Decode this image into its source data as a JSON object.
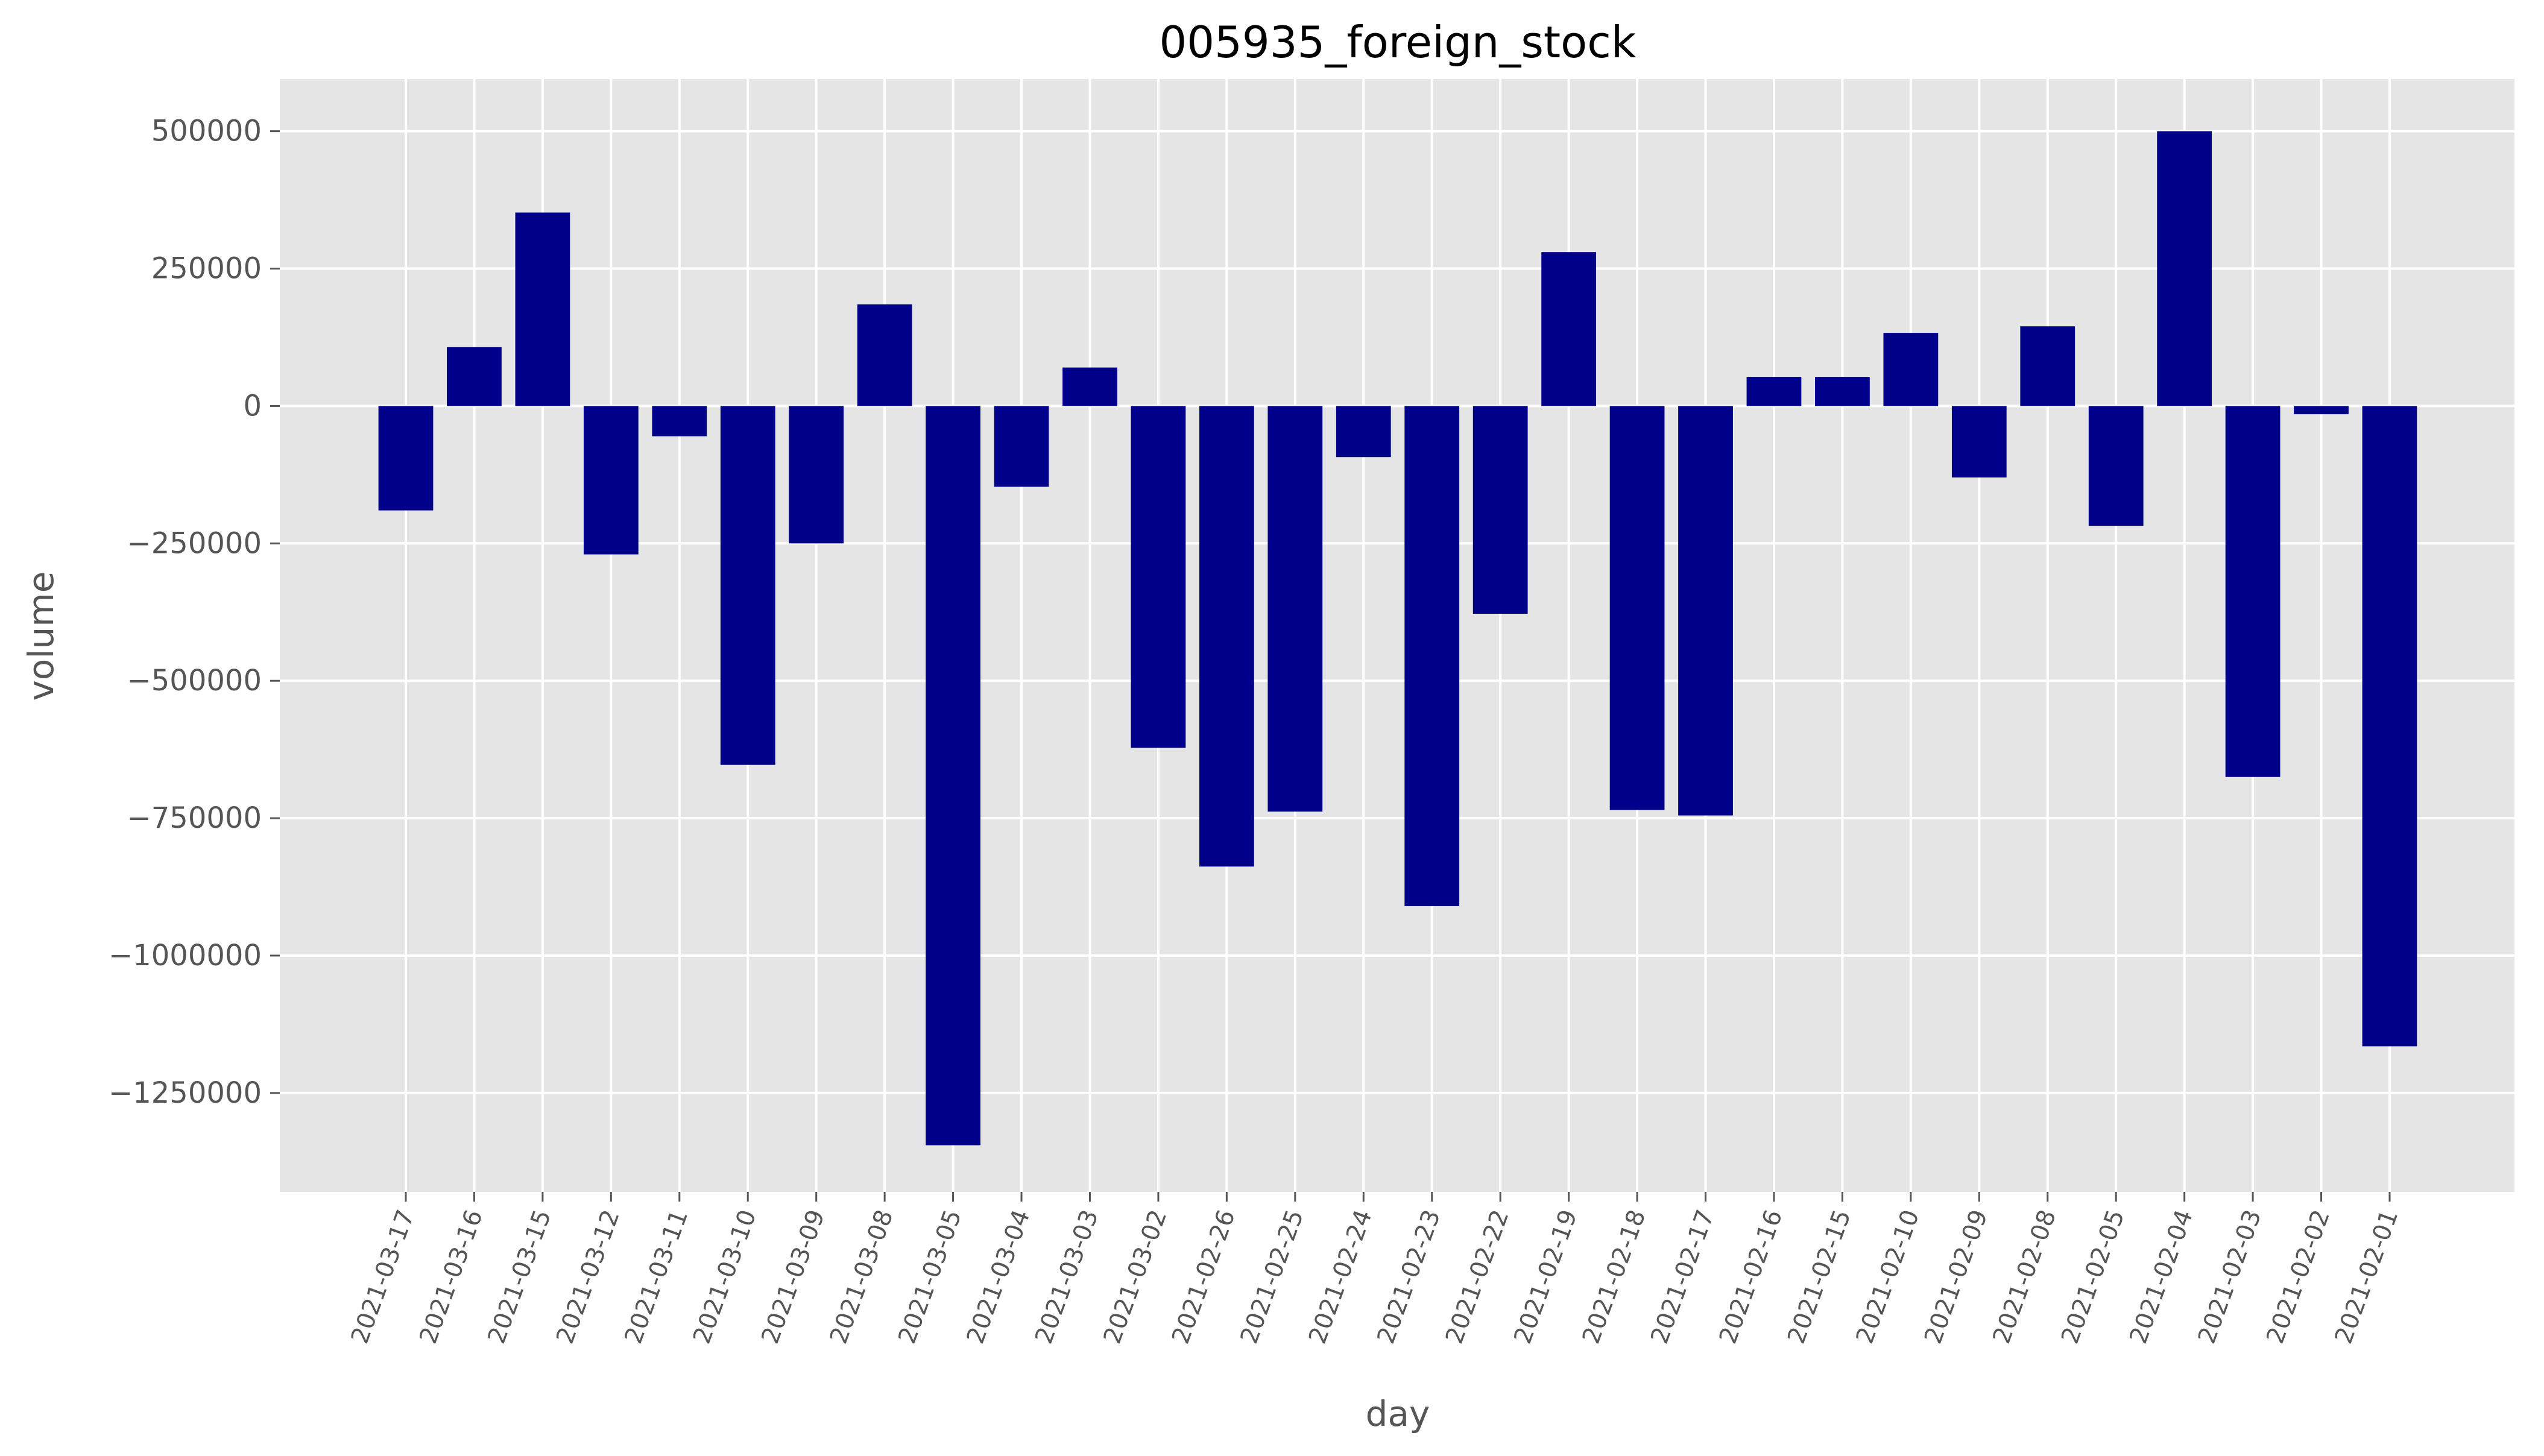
{
  "chart_data": {
    "type": "bar",
    "title": "005935_foreign_stock",
    "xlabel": "day",
    "ylabel": "volume",
    "categories": [
      "2021-03-17",
      "2021-03-16",
      "2021-03-15",
      "2021-03-12",
      "2021-03-11",
      "2021-03-10",
      "2021-03-09",
      "2021-03-08",
      "2021-03-05",
      "2021-03-04",
      "2021-03-03",
      "2021-03-02",
      "2021-02-26",
      "2021-02-25",
      "2021-02-24",
      "2021-02-23",
      "2021-02-22",
      "2021-02-19",
      "2021-02-18",
      "2021-02-17",
      "2021-02-16",
      "2021-02-15",
      "2021-02-10",
      "2021-02-09",
      "2021-02-08",
      "2021-02-05",
      "2021-02-04",
      "2021-02-03",
      "2021-02-02",
      "2021-02-01"
    ],
    "values": [
      -190000,
      107000,
      352000,
      -270000,
      -55000,
      -653000,
      -250000,
      185000,
      -1345000,
      -147000,
      70000,
      -622000,
      -838000,
      -738000,
      -93000,
      -910000,
      -378000,
      280000,
      -735000,
      -745000,
      53000,
      53000,
      133000,
      -130000,
      145000,
      -218000,
      500000,
      -675000,
      -15000,
      -1165000
    ],
    "ylim": [
      -1430000,
      595000
    ],
    "yticks": [
      500000,
      250000,
      0,
      -250000,
      -500000,
      -750000,
      -1000000,
      -1250000
    ],
    "ytick_labels": [
      "500000",
      "250000",
      "0",
      "−250000",
      "−500000",
      "−750000",
      "−1000000",
      "−1250000"
    ],
    "grid": true,
    "bar_color": "#00008b",
    "background_color": "#e5e5e5"
  }
}
